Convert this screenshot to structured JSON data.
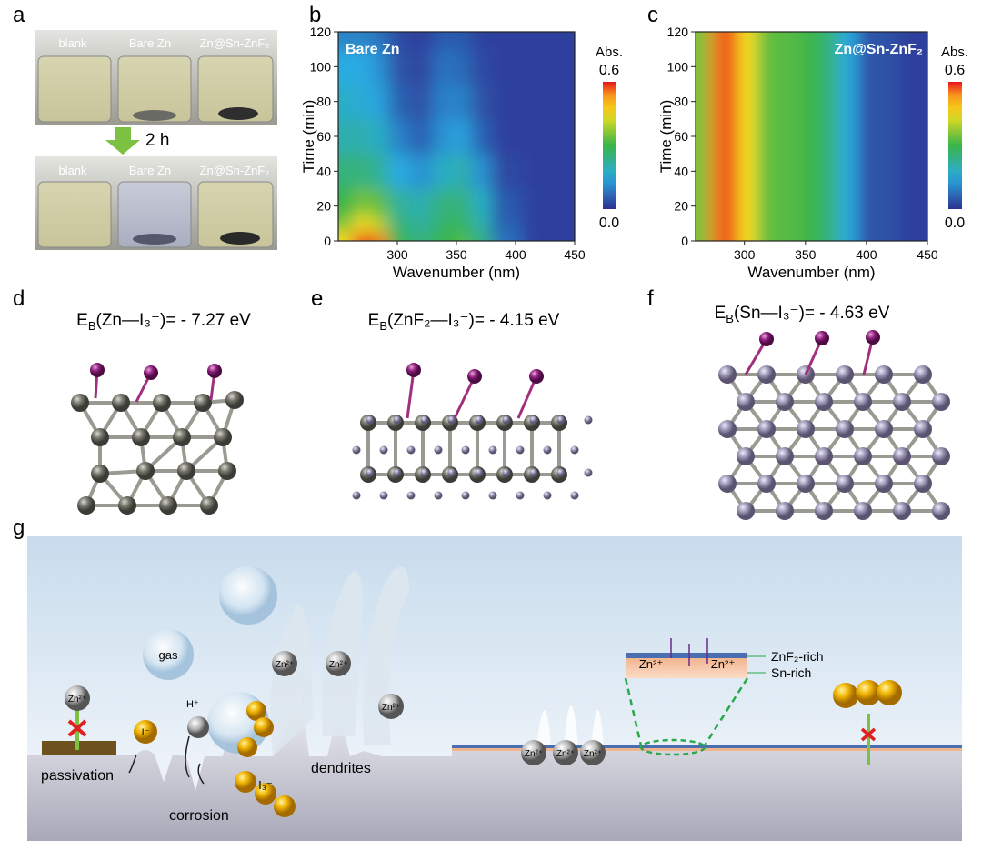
{
  "panel_labels": [
    "a",
    "b",
    "c",
    "d",
    "e",
    "f",
    "g"
  ],
  "photos": {
    "labels_top": [
      "blank",
      "Bare Zn",
      "Zn@Sn-ZnF₂"
    ],
    "labels_bottom": [
      "blank",
      "Bare Zn",
      "Zn@Sn-ZnF₂"
    ],
    "time": "2 h"
  },
  "chart_data": [
    {
      "type": "contour",
      "title": "Bare Zn",
      "xlabel": "Wavenumber (nm)",
      "ylabel": "Time (min)",
      "xlim": [
        250,
        450
      ],
      "xticks": [
        300,
        350,
        400,
        450
      ],
      "ylim": [
        0,
        120
      ],
      "yticks": [
        0,
        20,
        40,
        60,
        80,
        100,
        120
      ],
      "x": [
        255,
        270,
        285,
        300,
        320,
        340,
        355,
        370,
        390,
        420,
        450
      ],
      "y": [
        0,
        10,
        20,
        40,
        60,
        80,
        100,
        120
      ],
      "z": [
        [
          0.45,
          0.6,
          0.55,
          0.3,
          0.25,
          0.3,
          0.32,
          0.25,
          0.08,
          0.02,
          0.02
        ],
        [
          0.35,
          0.45,
          0.4,
          0.25,
          0.22,
          0.27,
          0.28,
          0.2,
          0.06,
          0.02,
          0.02
        ],
        [
          0.3,
          0.35,
          0.33,
          0.22,
          0.2,
          0.25,
          0.25,
          0.18,
          0.05,
          0.02,
          0.02
        ],
        [
          0.25,
          0.25,
          0.22,
          0.15,
          0.12,
          0.18,
          0.2,
          0.12,
          0.03,
          0.02,
          0.02
        ],
        [
          0.2,
          0.2,
          0.18,
          0.1,
          0.06,
          0.12,
          0.14,
          0.06,
          0.02,
          0.02,
          0.02
        ],
        [
          0.18,
          0.16,
          0.14,
          0.06,
          0.04,
          0.1,
          0.1,
          0.04,
          0.02,
          0.02,
          0.02
        ],
        [
          0.15,
          0.15,
          0.12,
          0.04,
          0.03,
          0.08,
          0.07,
          0.03,
          0.02,
          0.02,
          0.02
        ],
        [
          0.1,
          0.1,
          0.08,
          0.03,
          0.02,
          0.05,
          0.05,
          0.02,
          0.02,
          0.02,
          0.02
        ]
      ],
      "colorbar": {
        "label": "Abs.",
        "lim": [
          0,
          0.6
        ],
        "ticks": [
          {
            "value": 0,
            "label": "0.0"
          },
          {
            "value": 0.6,
            "label": "0.6"
          }
        ]
      }
    },
    {
      "type": "contour",
      "title": "Zn@Sn-ZnF₂",
      "xlabel": "Wavenumber (nm)",
      "ylabel": "Time (min)",
      "xlim": [
        260,
        450
      ],
      "xticks": [
        300,
        350,
        400,
        450
      ],
      "ylim": [
        0,
        120
      ],
      "yticks": [
        0,
        20,
        40,
        60,
        80,
        100,
        120
      ],
      "x": [
        265,
        278,
        288,
        300,
        320,
        340,
        355,
        370,
        385,
        400,
        450
      ],
      "y": [
        0,
        10,
        20,
        40,
        60,
        80,
        100,
        120
      ],
      "z": [
        [
          0.35,
          0.55,
          0.6,
          0.45,
          0.33,
          0.32,
          0.3,
          0.25,
          0.15,
          0.04,
          0.02
        ],
        [
          0.35,
          0.55,
          0.6,
          0.45,
          0.33,
          0.32,
          0.3,
          0.25,
          0.15,
          0.04,
          0.02
        ],
        [
          0.35,
          0.55,
          0.6,
          0.45,
          0.33,
          0.32,
          0.3,
          0.25,
          0.15,
          0.04,
          0.02
        ],
        [
          0.35,
          0.55,
          0.6,
          0.45,
          0.33,
          0.32,
          0.3,
          0.25,
          0.15,
          0.04,
          0.02
        ],
        [
          0.35,
          0.55,
          0.6,
          0.45,
          0.33,
          0.32,
          0.3,
          0.25,
          0.15,
          0.04,
          0.02
        ],
        [
          0.35,
          0.55,
          0.6,
          0.45,
          0.33,
          0.32,
          0.3,
          0.25,
          0.15,
          0.04,
          0.02
        ],
        [
          0.35,
          0.55,
          0.6,
          0.45,
          0.33,
          0.32,
          0.3,
          0.25,
          0.15,
          0.04,
          0.02
        ],
        [
          0.35,
          0.55,
          0.6,
          0.45,
          0.33,
          0.32,
          0.3,
          0.25,
          0.15,
          0.04,
          0.02
        ]
      ],
      "colorbar": {
        "label": "Abs.",
        "lim": [
          0,
          0.6
        ],
        "ticks": [
          {
            "value": 0,
            "label": "0.0"
          },
          {
            "value": 0.6,
            "label": "0.6"
          }
        ]
      }
    }
  ],
  "binding_energies": [
    {
      "symbol": "E",
      "sub": "B",
      "rest": "(Zn—I₃⁻)= - 7.27 eV"
    },
    {
      "symbol": "E",
      "sub": "B",
      "rest": "(ZnF₂—I₃⁻)= - 4.15 eV"
    },
    {
      "symbol": "E",
      "sub": "B",
      "rest": "(Sn—I₃⁻)= - 4.63 eV"
    }
  ],
  "schematic": {
    "gas": "gas",
    "passivation": "passivation",
    "corrosion": "corrosion",
    "dendrites": "dendrites",
    "i_ion": "I⁻",
    "h_ion": "H⁺",
    "i3_ion": "I₃⁻",
    "zn_ions": [
      "Zn²⁺",
      "Zn²⁺",
      "Zn²⁺",
      "Zn²⁺",
      "Zn²⁺",
      "Zn²⁺",
      "Zn²⁺",
      "Zn²⁺",
      "Zn²⁺"
    ],
    "layer_labels": [
      "ZnF₂-rich",
      "Sn-rich"
    ]
  }
}
